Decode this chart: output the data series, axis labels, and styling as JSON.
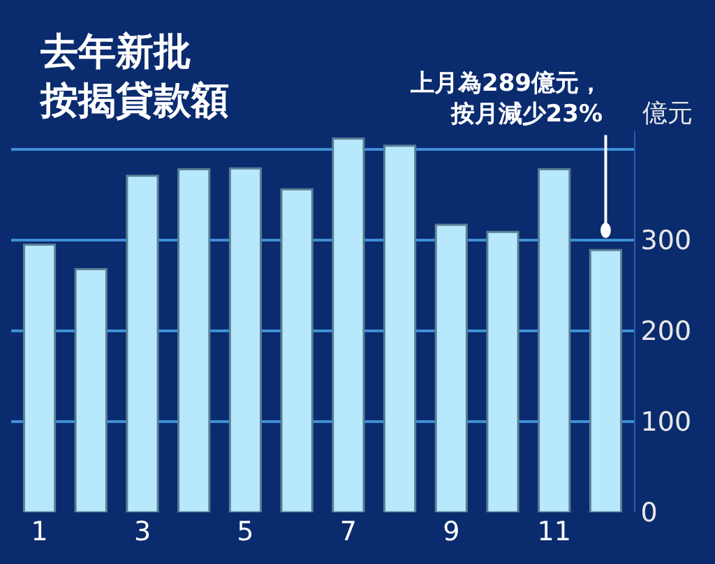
{
  "chart_data": {
    "type": "bar",
    "title": "去年新批按揭貸款額",
    "ylabel": "億元",
    "categories": [
      "1",
      null,
      "3",
      null,
      "5",
      null,
      "7",
      null,
      "9",
      null,
      "11",
      null
    ],
    "values": [
      295,
      268,
      371,
      378,
      379,
      356,
      412,
      404,
      317,
      309,
      378,
      289
    ],
    "color": "#b8e8fc",
    "ylim": [
      0,
      420
    ],
    "yticks": [
      0,
      100,
      200,
      300,
      {
        "value": 400,
        "label": null
      }
    ],
    "grid": "y",
    "annotations": [
      "上月為289億元，按月減少23%"
    ]
  }
}
